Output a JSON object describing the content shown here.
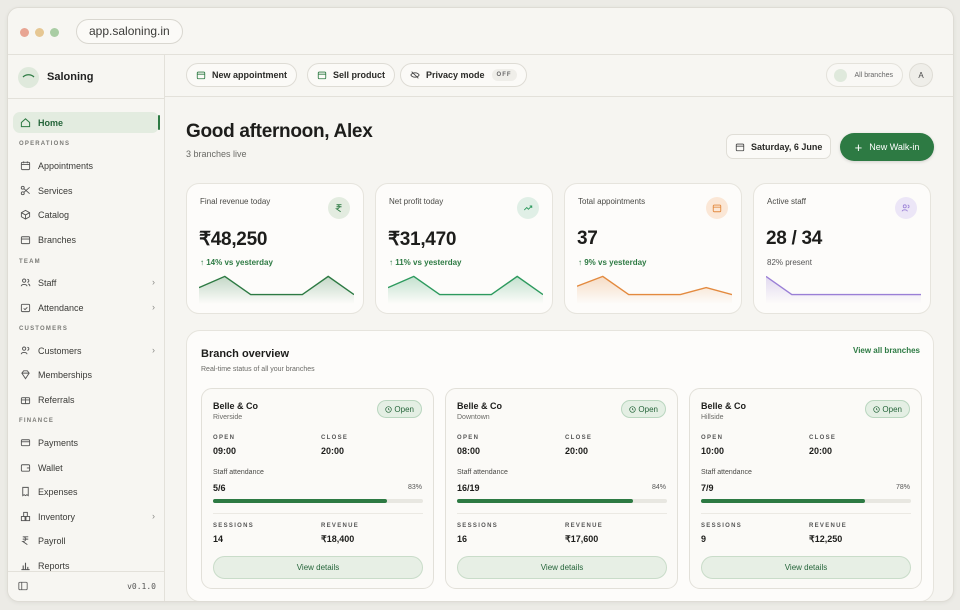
{
  "browser": {
    "url": "app.saloning.in"
  },
  "brand": {
    "name": "Saloning"
  },
  "sidebar": {
    "sections": {
      "operations": "OPERATIONS",
      "team": "TEAM",
      "customers": "CUSTOMERS",
      "finance": "FINANCE"
    },
    "items": {
      "home": "Home",
      "appointments": "Appointments",
      "services": "Services",
      "catalog": "Catalog",
      "branches": "Branches",
      "staff": "Staff",
      "attendance": "Attendance",
      "customers": "Customers",
      "memberships": "Memberships",
      "referrals": "Referrals",
      "payments": "Payments",
      "wallet": "Wallet",
      "expenses": "Expenses",
      "inventory": "Inventory",
      "payroll": "Payroll",
      "reports": "Reports"
    },
    "version": "v0.1.0"
  },
  "topbar": {
    "new_appointment": "New appointment",
    "sell_product": "Sell product",
    "privacy_mode": "Privacy mode",
    "privacy_state": "OFF",
    "branch_selector": "All branches",
    "avatar_initial": "A"
  },
  "header": {
    "greeting": "Good afternoon, Alex",
    "subtitle": "3 branches live",
    "date": "Saturday, 6 June",
    "walkin_button": "New Walk-in"
  },
  "stats": [
    {
      "title": "Final revenue today",
      "value": "₹48,250",
      "delta": "↑ 14% vs yesterday",
      "color": "#2d7a43",
      "icon": "rupee-icon",
      "spark": [
        0.55,
        0.95,
        0.3,
        0.3,
        0.3,
        0.95,
        0.3
      ]
    },
    {
      "title": "Net profit today",
      "value": "₹31,470",
      "delta": "↑ 11% vs yesterday",
      "color": "#2d9a5e",
      "icon": "trend-up-icon",
      "spark": [
        0.55,
        0.95,
        0.3,
        0.3,
        0.3,
        0.95,
        0.3
      ]
    },
    {
      "title": "Total appointments",
      "value": "37",
      "delta": "↑ 9% vs yesterday",
      "color": "#e38a3f",
      "icon": "calendar-icon",
      "spark": [
        0.6,
        0.95,
        0.3,
        0.3,
        0.3,
        0.55,
        0.3
      ]
    },
    {
      "title": "Active staff",
      "value": "28 / 34",
      "delta": "82% present",
      "color": "#9a7fd6",
      "icon": "users-icon",
      "spark": [
        0.95,
        0.3,
        0.3,
        0.3,
        0.3,
        0.3,
        0.3
      ]
    }
  ],
  "overview": {
    "title": "Branch overview",
    "subtitle": "Real-time status of all your branches",
    "view_all": "View all branches",
    "labels": {
      "open": "OPEN",
      "close": "CLOSE",
      "attendance": "Staff attendance",
      "sessions": "SESSIONS",
      "revenue": "REVENUE",
      "details": "View details"
    },
    "branches": [
      {
        "name": "Belle & Co",
        "location": "Riverside",
        "status": "Open",
        "open": "09:00",
        "close": "20:00",
        "attendance": "5/6",
        "attendance_pct": "83%",
        "attendance_frac": 0.83,
        "sessions": "14",
        "revenue": "₹18,400"
      },
      {
        "name": "Belle & Co",
        "location": "Downtown",
        "status": "Open",
        "open": "08:00",
        "close": "20:00",
        "attendance": "16/19",
        "attendance_pct": "84%",
        "attendance_frac": 0.84,
        "sessions": "16",
        "revenue": "₹17,600"
      },
      {
        "name": "Belle & Co",
        "location": "Hillside",
        "status": "Open",
        "open": "10:00",
        "close": "20:00",
        "attendance": "7/9",
        "attendance_pct": "78%",
        "attendance_frac": 0.78,
        "sessions": "9",
        "revenue": "₹12,250"
      }
    ]
  }
}
